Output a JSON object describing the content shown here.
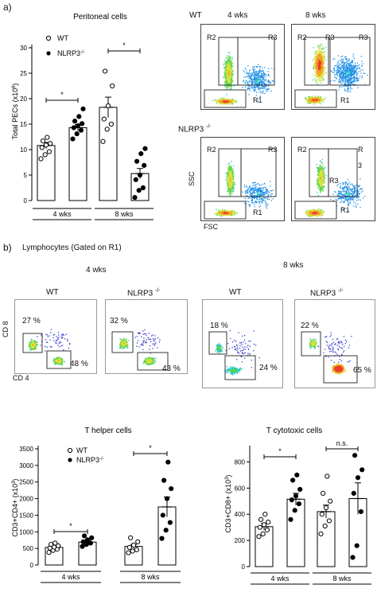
{
  "panel_a": {
    "label": "a)",
    "col_wt": "WT",
    "col_4wks": "4 wks",
    "col_8wks": "8 wks",
    "row_ko": "NLRP3 -/-",
    "ssc": "SSC",
    "fsc": "FSC",
    "gates": [
      "R1",
      "R2",
      "R3",
      "3"
    ]
  },
  "panel_b": {
    "label": "b)",
    "subtitle": "Lymphocytes (Gated on R1)",
    "hdr_4wks": "4 wks",
    "hdr_8wks": "8 wks",
    "cd8": "CD 8",
    "cd4": "CD 4",
    "plots": [
      {
        "title": "WT",
        "upper": "27 %",
        "lower": "48 %"
      },
      {
        "title": "NLRP3 -/-",
        "upper": "32 %",
        "lower": "43 %"
      },
      {
        "title": "WT",
        "upper": "18 %",
        "lower": "24 %"
      },
      {
        "title": "NLRP3 -/-",
        "upper": "22 %",
        "lower": "65 %"
      }
    ]
  },
  "chart_data": [
    {
      "type": "bar",
      "title": "Peritoneal cells",
      "ylabel": "Total PECs (x10^6)",
      "ylim": [
        0,
        30
      ],
      "yticks": [
        "0",
        "5",
        "10",
        "15",
        "20",
        "25",
        "30"
      ],
      "groups": [
        "4 wks",
        "8 wks"
      ],
      "legend": [
        "WT",
        "NLRP3-/-"
      ],
      "sig": [
        "*",
        "*"
      ],
      "series": [
        {
          "name": "WT",
          "values": [
            10.8,
            18.3
          ],
          "sem": [
            0.6,
            2.0
          ],
          "points": [
            [
              8.2,
              9.0,
              9.6,
              10.4,
              10.9,
              11.2,
              11.7,
              12.4
            ],
            [
              11.6,
              14.0,
              15.0,
              16.0,
              18.6,
              22.5,
              25.4
            ]
          ]
        },
        {
          "name": "NLRP3-/-",
          "values": [
            14.3,
            5.3
          ],
          "sem": [
            0.6,
            1.0
          ],
          "points": [
            [
              12.1,
              13.1,
              13.8,
              14.3,
              14.7,
              15.1,
              15.6,
              16.5,
              18.0
            ],
            [
              0.6,
              2.0,
              2.5,
              4.1,
              5.0,
              6.9,
              7.7,
              9.2,
              10.2
            ]
          ]
        }
      ]
    },
    {
      "type": "bar",
      "title": "T helper cells",
      "ylabel": "CD3+CD4+ (x10^3)",
      "ylim": [
        0,
        3500
      ],
      "yticks": [
        "0",
        "500",
        "1000",
        "1500",
        "2000",
        "2500",
        "3000",
        "3500"
      ],
      "groups": [
        "4 wks",
        "8 wks"
      ],
      "legend": [
        "WT",
        "NLRP3-/-"
      ],
      "sig": [
        "*",
        "*"
      ],
      "series": [
        {
          "name": "WT",
          "values": [
            530,
            560
          ],
          "sem": [
            35,
            60
          ],
          "points": [
            [
              380,
              440,
              480,
              510,
              540,
              580,
              620,
              660
            ],
            [
              370,
              420,
              460,
              530,
              600,
              700,
              820
            ]
          ]
        },
        {
          "name": "NLRP3-/-",
          "values": [
            690,
            1750
          ],
          "sem": [
            50,
            300
          ],
          "points": [
            [
              560,
              620,
              660,
              700,
              760,
              820,
              880
            ],
            [
              800,
              1050,
              1280,
              1500,
              2000,
              2300,
              2550,
              3100
            ]
          ]
        }
      ]
    },
    {
      "type": "bar",
      "title": "T cytotoxic cells",
      "ylabel": "CD3+CD8+ (x10^3)",
      "ylim": [
        0,
        900
      ],
      "yticks": [
        "0",
        "200",
        "400",
        "600",
        "800"
      ],
      "groups": [
        "4 wks",
        "8 wks"
      ],
      "legend": [
        "WT",
        "NLRP3-/-"
      ],
      "sig": [
        "*",
        "n.s."
      ],
      "series": [
        {
          "name": "WT",
          "values": [
            305,
            420
          ],
          "sem": [
            25,
            50
          ],
          "points": [
            [
              230,
              250,
              280,
              300,
              320,
              340,
              360,
              400
            ],
            [
              250,
              310,
              350,
              400,
              450,
              500,
              560,
              690
            ]
          ]
        },
        {
          "name": "NLRP3-/-",
          "values": [
            515,
            520
          ],
          "sem": [
            45,
            120
          ],
          "points": [
            [
              360,
              430,
              480,
              510,
              540,
              590,
              660,
              700
            ],
            [
              70,
              160,
              420,
              560,
              680,
              740,
              850
            ]
          ]
        }
      ]
    }
  ]
}
